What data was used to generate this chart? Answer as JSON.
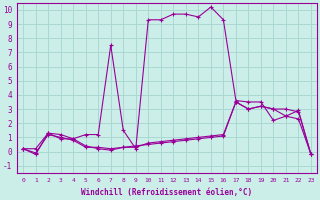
{
  "xlabel": "Windchill (Refroidissement éolien,°C)",
  "background_color": "#cceee8",
  "grid_color": "#aad8d3",
  "line_color": "#990099",
  "xlim": [
    -0.5,
    23.5
  ],
  "ylim": [
    -1.5,
    10.5
  ],
  "xticks": [
    0,
    1,
    2,
    3,
    4,
    5,
    6,
    7,
    8,
    9,
    10,
    11,
    12,
    13,
    14,
    15,
    16,
    17,
    18,
    19,
    20,
    21,
    22,
    23
  ],
  "yticks": [
    -1,
    0,
    1,
    2,
    3,
    4,
    5,
    6,
    7,
    8,
    9,
    10
  ],
  "curve1_x": [
    0,
    1,
    2,
    3,
    4,
    5,
    6,
    7,
    8,
    9,
    10,
    11,
    12,
    13,
    14,
    15,
    16,
    17,
    18,
    19,
    20,
    21,
    22,
    23
  ],
  "curve1_y": [
    0.2,
    0.2,
    1.3,
    0.9,
    0.9,
    0.4,
    0.2,
    0.1,
    0.3,
    0.4,
    0.5,
    0.6,
    0.7,
    0.8,
    0.9,
    1.0,
    1.1,
    3.5,
    3.0,
    3.2,
    3.0,
    3.0,
    2.8,
    -0.2
  ],
  "curve2_x": [
    0,
    1,
    2,
    3,
    4,
    5,
    6,
    7,
    8,
    9,
    10,
    11,
    12,
    13,
    14,
    15,
    16,
    17,
    18,
    19,
    20,
    21,
    22,
    23
  ],
  "curve2_y": [
    0.2,
    -0.2,
    1.3,
    1.2,
    0.9,
    1.2,
    1.2,
    7.5,
    1.5,
    0.2,
    9.3,
    9.3,
    9.7,
    9.7,
    9.5,
    10.2,
    9.3,
    3.6,
    3.5,
    3.5,
    2.2,
    2.5,
    2.9,
    -0.2
  ],
  "curve3_x": [
    0,
    1,
    2,
    3,
    4,
    5,
    6,
    7,
    8,
    9,
    10,
    11,
    12,
    13,
    14,
    15,
    16,
    17,
    18,
    19,
    20,
    21,
    22,
    23
  ],
  "curve3_y": [
    0.2,
    -0.1,
    1.2,
    1.0,
    0.8,
    0.3,
    0.3,
    0.2,
    0.3,
    0.3,
    0.6,
    0.7,
    0.8,
    0.9,
    1.0,
    1.1,
    1.2,
    3.5,
    3.0,
    3.2,
    3.0,
    2.5,
    2.3,
    -0.2
  ]
}
